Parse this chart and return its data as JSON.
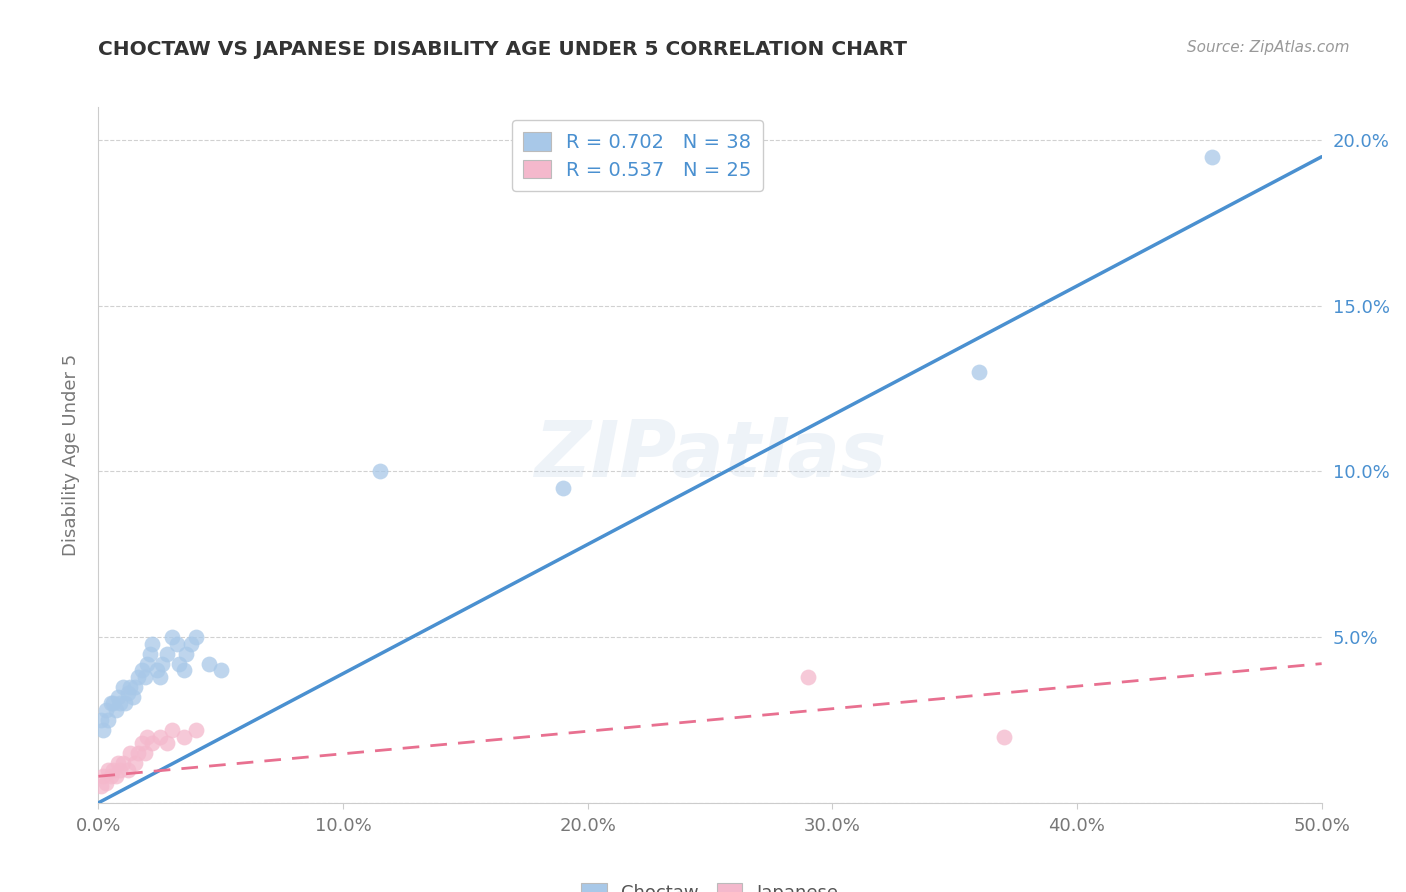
{
  "title": "CHOCTAW VS JAPANESE DISABILITY AGE UNDER 5 CORRELATION CHART",
  "source_text": "Source: ZipAtlas.com",
  "ylabel": "Disability Age Under 5",
  "xlim": [
    0.0,
    0.5
  ],
  "ylim": [
    0.0,
    0.21
  ],
  "xtick_labels": [
    "0.0%",
    "10.0%",
    "20.0%",
    "30.0%",
    "40.0%",
    "50.0%"
  ],
  "xtick_vals": [
    0.0,
    0.1,
    0.2,
    0.3,
    0.4,
    0.5
  ],
  "ytick_labels": [
    "",
    "5.0%",
    "10.0%",
    "15.0%",
    "20.0%"
  ],
  "ytick_vals": [
    0.0,
    0.05,
    0.1,
    0.15,
    0.2
  ],
  "choctaw_R": 0.702,
  "choctaw_N": 38,
  "japanese_R": 0.537,
  "japanese_N": 25,
  "choctaw_color": "#A8C8E8",
  "japanese_color": "#F4B8CC",
  "choctaw_line_color": "#4A90D0",
  "japanese_line_color": "#E87090",
  "legend_label_color": "#4A90D0",
  "watermark": "ZIPatlas",
  "choctaw_x": [
    0.001,
    0.002,
    0.003,
    0.004,
    0.005,
    0.006,
    0.007,
    0.008,
    0.009,
    0.01,
    0.011,
    0.012,
    0.013,
    0.014,
    0.015,
    0.016,
    0.018,
    0.019,
    0.02,
    0.021,
    0.022,
    0.024,
    0.025,
    0.026,
    0.028,
    0.03,
    0.032,
    0.033,
    0.035,
    0.036,
    0.038,
    0.04,
    0.045,
    0.05,
    0.115,
    0.19,
    0.36,
    0.455
  ],
  "choctaw_y": [
    0.025,
    0.022,
    0.028,
    0.025,
    0.03,
    0.03,
    0.028,
    0.032,
    0.03,
    0.035,
    0.03,
    0.033,
    0.035,
    0.032,
    0.035,
    0.038,
    0.04,
    0.038,
    0.042,
    0.045,
    0.048,
    0.04,
    0.038,
    0.042,
    0.045,
    0.05,
    0.048,
    0.042,
    0.04,
    0.045,
    0.048,
    0.05,
    0.042,
    0.04,
    0.1,
    0.095,
    0.13,
    0.195
  ],
  "japanese_x": [
    0.001,
    0.002,
    0.003,
    0.004,
    0.005,
    0.006,
    0.007,
    0.008,
    0.009,
    0.01,
    0.012,
    0.013,
    0.015,
    0.016,
    0.018,
    0.019,
    0.02,
    0.022,
    0.025,
    0.028,
    0.03,
    0.035,
    0.04,
    0.29,
    0.37
  ],
  "japanese_y": [
    0.005,
    0.008,
    0.006,
    0.01,
    0.008,
    0.01,
    0.008,
    0.012,
    0.01,
    0.012,
    0.01,
    0.015,
    0.012,
    0.015,
    0.018,
    0.015,
    0.02,
    0.018,
    0.02,
    0.018,
    0.022,
    0.02,
    0.022,
    0.038,
    0.02
  ],
  "choctaw_line_x": [
    0.0,
    0.5
  ],
  "choctaw_line_y": [
    0.0,
    0.195
  ],
  "japanese_line_x": [
    0.0,
    0.5
  ],
  "japanese_line_y": [
    0.008,
    0.042
  ],
  "background_color": "#FFFFFF",
  "grid_color": "#CCCCCC"
}
